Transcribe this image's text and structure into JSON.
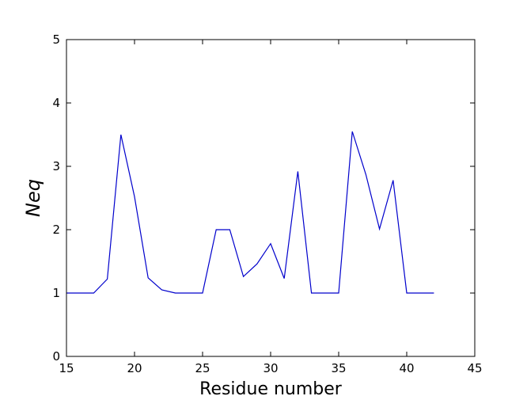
{
  "chart_data": {
    "type": "line",
    "xlabel": "Residue number",
    "ylabel": "Neq",
    "xlim": [
      15,
      45
    ],
    "ylim": [
      0,
      5
    ],
    "xticks": [
      15,
      20,
      25,
      30,
      35,
      40,
      45
    ],
    "yticks": [
      0,
      1,
      2,
      3,
      4,
      5
    ],
    "grid": false,
    "series": [
      {
        "color": "#0000cc",
        "x": [
          15,
          16,
          17,
          18,
          19,
          20,
          21,
          22,
          23,
          24,
          25,
          26,
          27,
          28,
          29,
          30,
          31,
          32,
          33,
          34,
          35,
          36,
          37,
          38,
          39,
          40,
          41,
          42
        ],
        "y": [
          1.0,
          1.0,
          1.0,
          1.22,
          3.5,
          2.52,
          1.24,
          1.05,
          1.0,
          1.0,
          1.0,
          2.0,
          2.0,
          1.26,
          1.46,
          1.78,
          1.23,
          2.92,
          1.0,
          1.0,
          1.0,
          3.55,
          2.87,
          2.01,
          2.78,
          1.0,
          1.0,
          1.0
        ]
      }
    ]
  }
}
